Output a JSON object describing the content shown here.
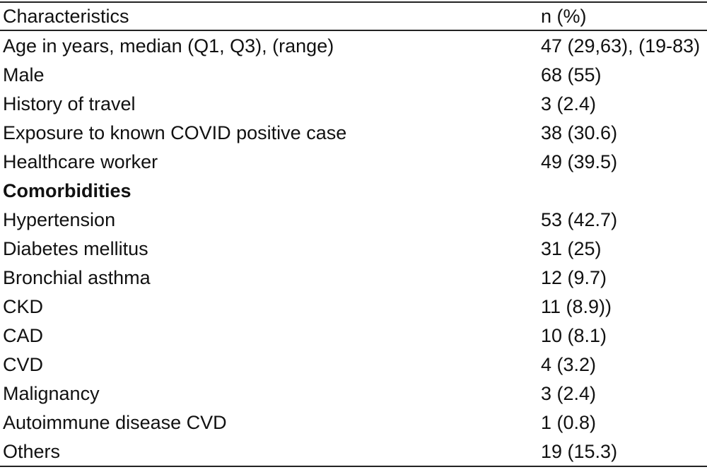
{
  "table": {
    "headers": [
      "Characteristics",
      "n (%)"
    ],
    "rows": [
      {
        "label": "Age in years, median (Q1, Q3), (range)",
        "value": "47 (29,63), (19-83)"
      },
      {
        "label": "Male",
        "value": "68 (55)"
      },
      {
        "label": "History of travel",
        "value": "3 (2.4)"
      },
      {
        "label": "Exposure to known COVID positive case",
        "value": "38 (30.6)"
      },
      {
        "label": "Healthcare worker",
        "value": "49 (39.5)"
      },
      {
        "label": "Comorbidities",
        "value": ""
      },
      {
        "label": "Hypertension",
        "value": "53 (42.7)"
      },
      {
        "label": "Diabetes mellitus",
        "value": "31 (25)"
      },
      {
        "label": "Bronchial asthma",
        "value": "12 (9.7)"
      },
      {
        "label": "CKD",
        "value": "11 (8.9))"
      },
      {
        "label": "CAD",
        "value": "10 (8.1)"
      },
      {
        "label": "CVD",
        "value": "4 (3.2)"
      },
      {
        "label": "Malignancy",
        "value": "3 (2.4)"
      },
      {
        "label": "Autoimmune disease CVD",
        "value": "1 (0.8)"
      },
      {
        "label": "Others",
        "value": "19 (15.3)"
      }
    ]
  }
}
